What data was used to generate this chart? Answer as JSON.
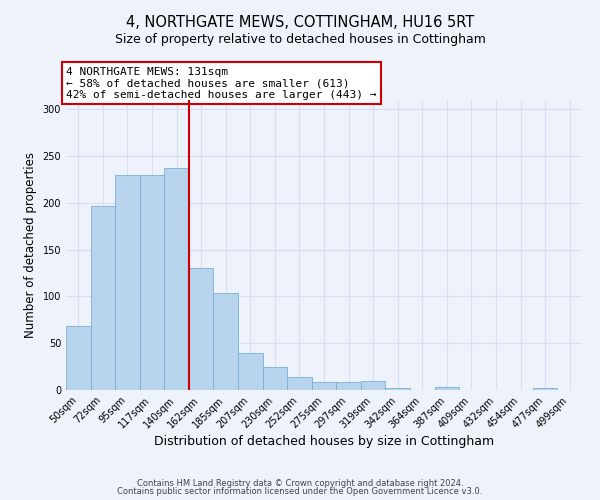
{
  "title": "4, NORTHGATE MEWS, COTTINGHAM, HU16 5RT",
  "subtitle": "Size of property relative to detached houses in Cottingham",
  "xlabel": "Distribution of detached houses by size in Cottingham",
  "ylabel": "Number of detached properties",
  "bar_labels": [
    "50sqm",
    "72sqm",
    "95sqm",
    "117sqm",
    "140sqm",
    "162sqm",
    "185sqm",
    "207sqm",
    "230sqm",
    "252sqm",
    "275sqm",
    "297sqm",
    "319sqm",
    "342sqm",
    "364sqm",
    "387sqm",
    "409sqm",
    "432sqm",
    "454sqm",
    "477sqm",
    "499sqm"
  ],
  "bar_values": [
    68,
    197,
    230,
    230,
    237,
    130,
    104,
    40,
    25,
    14,
    9,
    9,
    10,
    2,
    0,
    3,
    0,
    0,
    0,
    2,
    0
  ],
  "bar_color": "#b8d4ec",
  "bar_edgecolor": "#7aaed8",
  "ylim": [
    0,
    310
  ],
  "yticks": [
    0,
    50,
    100,
    150,
    200,
    250,
    300
  ],
  "vline_index": 4,
  "vline_color": "#cc0000",
  "annotation_title": "4 NORTHGATE MEWS: 131sqm",
  "annotation_line1": "← 58% of detached houses are smaller (613)",
  "annotation_line2": "42% of semi-detached houses are larger (443) →",
  "annotation_box_edgecolor": "#cc0000",
  "footer_line1": "Contains HM Land Registry data © Crown copyright and database right 2024.",
  "footer_line2": "Contains public sector information licensed under the Open Government Licence v3.0.",
  "background_color": "#eef2fb",
  "plot_background": "#eef2fb",
  "grid_color": "#d8dff0",
  "title_fontsize": 10.5,
  "subtitle_fontsize": 9,
  "xlabel_fontsize": 9,
  "ylabel_fontsize": 8.5,
  "tick_fontsize": 7,
  "annotation_fontsize": 8,
  "footer_fontsize": 6
}
